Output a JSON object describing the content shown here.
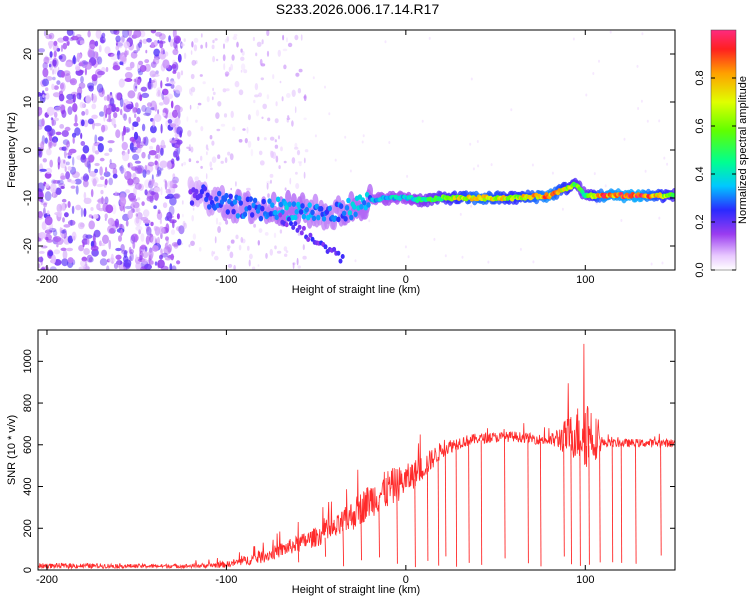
{
  "title": "S233.2026.006.17.14.R17",
  "colors": {
    "trace": "#ff2a2a",
    "frame": "#000000",
    "scatter": "#7a1fd6"
  },
  "chart_data": [
    {
      "type": "heatmap",
      "name": "spectrogram",
      "xlabel": "Height of straight line (km)",
      "ylabel": "Frequency (Hz)",
      "xlim": [
        -205,
        150
      ],
      "ylim": [
        -25,
        25
      ],
      "x_ticks": [
        -200,
        -100,
        0,
        100
      ],
      "x_tick_labels": [
        "-200",
        "-100",
        "0",
        "100"
      ],
      "y_ticks": [
        -20,
        -10,
        0,
        10,
        20
      ],
      "y_tick_labels": [
        "-20",
        "-10",
        "0",
        "10",
        "20"
      ],
      "ridge": {
        "x": [
          -120,
          -110,
          -100,
          -90,
          -80,
          -70,
          -60,
          -50,
          -40,
          -30,
          -20,
          -10,
          0,
          10,
          20,
          40,
          60,
          80,
          95,
          100,
          110,
          130,
          150
        ],
        "freq": [
          -9,
          -10,
          -11.5,
          -12,
          -12.5,
          -12,
          -12.5,
          -13,
          -13.5,
          -12,
          -10.5,
          -10,
          -10,
          -10.5,
          -10,
          -10,
          -10,
          -9.5,
          -7,
          -9.5,
          -9.5,
          -9.5,
          -9.5
        ],
        "amplitude": [
          0.2,
          0.25,
          0.3,
          0.3,
          0.3,
          0.35,
          0.35,
          0.3,
          0.3,
          0.35,
          0.35,
          0.4,
          0.4,
          0.5,
          0.6,
          0.85,
          0.7,
          0.9,
          0.6,
          0.5,
          0.9,
          0.95,
          0.6
        ]
      },
      "colorbar": {
        "label": "Normalized spectral amplitude",
        "range": [
          0,
          1
        ],
        "ticks": [
          0.0,
          0.2,
          0.4,
          0.6,
          0.8
        ],
        "tick_labels": [
          "0.0",
          "0.2",
          "0.4",
          "0.6",
          "0.8"
        ]
      }
    },
    {
      "type": "line",
      "name": "snr",
      "xlabel": "Height of straight line (km)",
      "ylabel": "SNR (10 * v/v)",
      "xlim": [
        -205,
        150
      ],
      "ylim": [
        0,
        1150
      ],
      "x_ticks": [
        -200,
        -100,
        0,
        100
      ],
      "x_tick_labels": [
        "-200",
        "-100",
        "0",
        "100"
      ],
      "y_ticks": [
        0,
        200,
        400,
        600,
        800,
        1000
      ],
      "y_tick_labels": [
        "0",
        "200",
        "400",
        "600",
        "800",
        "1000"
      ],
      "envelope": {
        "x": [
          -205,
          -180,
          -150,
          -120,
          -100,
          -80,
          -60,
          -40,
          -30,
          -20,
          -10,
          0,
          10,
          20,
          30,
          40,
          60,
          80,
          95,
          100,
          105,
          110,
          130,
          150
        ],
        "base": [
          15,
          15,
          15,
          15,
          20,
          50,
          110,
          170,
          230,
          300,
          350,
          400,
          470,
          560,
          600,
          620,
          630,
          610,
          600,
          600,
          590,
          600,
          600,
          600
        ],
        "amp": [
          25,
          25,
          20,
          20,
          30,
          60,
          80,
          110,
          150,
          170,
          190,
          150,
          120,
          80,
          60,
          50,
          50,
          50,
          250,
          400,
          250,
          40,
          40,
          40
        ]
      },
      "dropouts": [
        -60,
        -45,
        -35,
        -25,
        -15,
        -5,
        5,
        12,
        18,
        22,
        28,
        35,
        42,
        55,
        68,
        75,
        88,
        92,
        97,
        102,
        108,
        115,
        120,
        128,
        142
      ]
    }
  ]
}
